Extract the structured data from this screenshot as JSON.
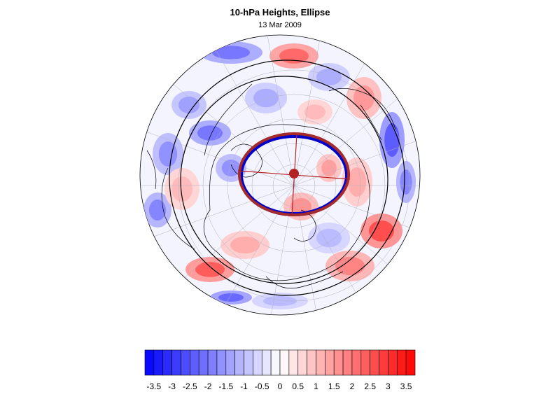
{
  "header": {
    "title": "10-hPa Heights, Ellipse",
    "date": "13 Mar 2009"
  },
  "colorbar": {
    "min": -3.75,
    "max": 3.75,
    "step": 0.25,
    "low_color": "#0000ff",
    "mid_color": "#ffffff",
    "high_color": "#ff0000",
    "tick_labels": [
      "-3.5",
      "-3",
      "-2.5",
      "-2",
      "-1.5",
      "-1",
      "-0.5",
      "0",
      "0.5",
      "1",
      "1.5",
      "2",
      "2.5",
      "3",
      "3.5"
    ],
    "tick_values": [
      -3.5,
      -3,
      -2.5,
      -2,
      -1.5,
      -1,
      -0.5,
      0,
      0.5,
      1,
      1.5,
      2,
      2.5,
      3,
      3.5
    ]
  },
  "map": {
    "projection": "orthographic-polar",
    "ellipse_outline_color": "#a52a2a",
    "ellipse_inner_color": "#0000cc",
    "ellipse_center_color": "#b22222",
    "contour_color": "#000000"
  }
}
